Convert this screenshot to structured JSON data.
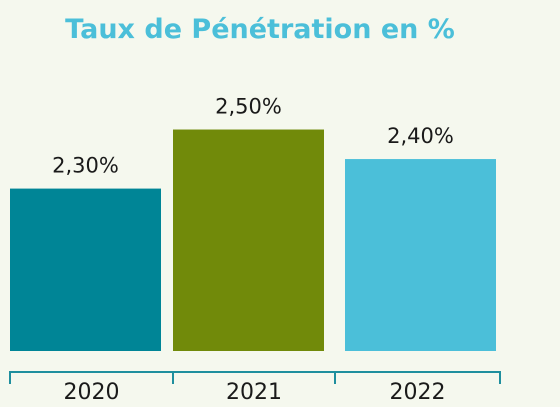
{
  "chart_data": {
    "type": "bar",
    "title": "Taux de Pénétration en %",
    "categories": [
      "2020",
      "2021",
      "2022"
    ],
    "values": [
      2.3,
      2.5,
      2.4
    ],
    "value_labels": [
      "2,30%",
      "2,50%",
      "2,40%"
    ],
    "colors": [
      "#008596",
      "#718a0a",
      "#4bbfd9"
    ],
    "axis_color": "#1f8f9e",
    "title_color": "#4bbfd9",
    "ylim": [
      1.75,
      2.6
    ],
    "grid": false,
    "legend": "none"
  }
}
